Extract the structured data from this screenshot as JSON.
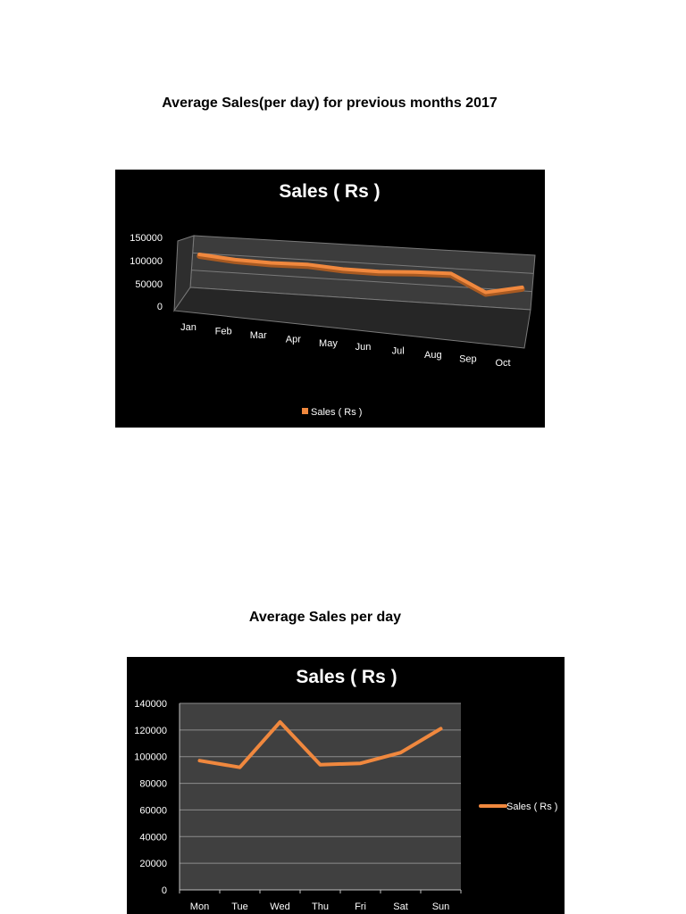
{
  "headings": {
    "monthly": "Average Sales(per day) for previous months 2017",
    "daily": "Average Sales per day"
  },
  "chart_data": [
    {
      "type": "line",
      "title": "Sales ( Rs )",
      "xlabel": "",
      "ylabel": "",
      "categories": [
        "Jan",
        "Feb",
        "Mar",
        "Apr",
        "May",
        "Jun",
        "Jul",
        "Aug",
        "Sep",
        "Oct"
      ],
      "series": [
        {
          "name": "Sales ( Rs )",
          "values": [
            97000,
            88000,
            85000,
            87000,
            80000,
            79000,
            84000,
            86000,
            40000,
            60000
          ]
        }
      ],
      "yticks": [
        "150000",
        "100000",
        "50000",
        "0"
      ],
      "ylim": [
        0,
        150000
      ],
      "legend": "bottom",
      "style": "3d",
      "colors": {
        "line": "#f0883e",
        "background": "#000000",
        "plot": "#3a3a3a"
      }
    },
    {
      "type": "line",
      "title": "Sales ( Rs )",
      "xlabel": "",
      "ylabel": "",
      "categories": [
        "Mon",
        "Tue",
        "Wed",
        "Thu",
        "Fri",
        "Sat",
        "Sun"
      ],
      "series": [
        {
          "name": "Sales ( Rs )",
          "values": [
            97000,
            92000,
            126000,
            94000,
            95000,
            103000,
            121000
          ]
        }
      ],
      "yticks": [
        "140000",
        "120000",
        "100000",
        "80000",
        "60000",
        "40000",
        "20000",
        "0"
      ],
      "ylim": [
        0,
        140000
      ],
      "grid": true,
      "legend": "right",
      "colors": {
        "line": "#f0883e",
        "background": "#000000",
        "plot": "#404040",
        "grid": "#8c8c8c"
      }
    }
  ]
}
